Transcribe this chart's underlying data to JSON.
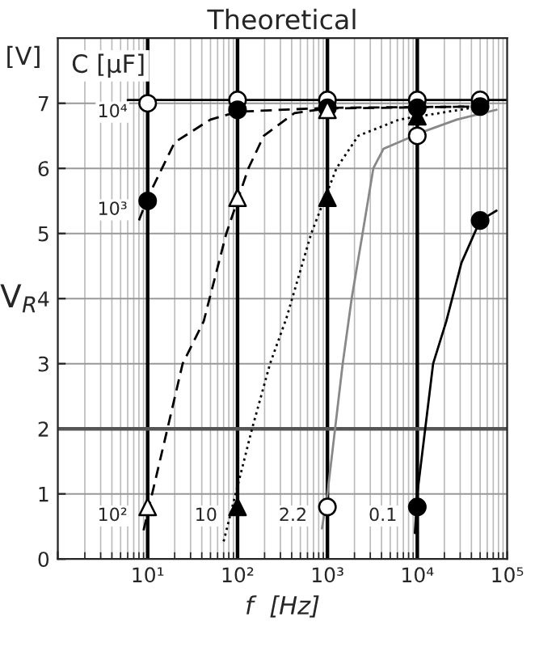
{
  "chart_data": {
    "type": "scatter",
    "title": "Theoretical",
    "xlabel": "f  [Hz]",
    "ylabel": "V$_{R}$",
    "log": "x",
    "xlim": [
      1,
      100000
    ],
    "ylim": [
      0,
      8
    ],
    "xticks": [
      {
        "value": 1,
        "label": null
      },
      {
        "value": 10,
        "label": "10¹"
      },
      {
        "value": 100,
        "label": "10²"
      },
      {
        "value": 1000,
        "label": "10³"
      },
      {
        "value": 10000,
        "label": "10⁴"
      },
      {
        "value": 100000,
        "label": "10⁵"
      }
    ],
    "yticks": [
      0,
      1,
      2,
      3,
      4,
      5,
      6,
      7
    ],
    "grid": true,
    "legend": false,
    "series": [
      {
        "type": "line",
        "color": "#000000",
        "line_style": "solid",
        "x": [
          6,
          100000
        ],
        "values": [
          7.05,
          7.05
        ]
      },
      {
        "type": "line",
        "color": "#000000",
        "line_style": "dashed",
        "x": [
          8,
          10,
          20,
          50,
          100,
          1000,
          50000
        ],
        "values": [
          5.2,
          5.55,
          6.4,
          6.75,
          6.87,
          6.93,
          6.95
        ]
      },
      {
        "type": "line",
        "color": "#000000",
        "line_style": "dashed",
        "x": [
          9,
          16.6,
          24.5,
          42,
          75,
          132,
          196,
          430,
          1000,
          50000
        ],
        "values": [
          0.44,
          2,
          3,
          3.65,
          5,
          6,
          6.5,
          6.85,
          6.92,
          6.95
        ]
      },
      {
        "type": "line",
        "color": "#000000",
        "line_style": "dotted",
        "x": [
          70,
          145,
          230,
          350,
          660,
          1260,
          2200,
          6300,
          50000
        ],
        "values": [
          0.27,
          2,
          3,
          3.7,
          5,
          6,
          6.5,
          6.75,
          6.95
        ]
      },
      {
        "type": "line",
        "color": "#888888",
        "line_style": "solid",
        "x": [
          870,
          1000,
          1480,
          1860,
          2460,
          3240,
          4200,
          11000,
          27500,
          76000
        ],
        "values": [
          0.47,
          1,
          3,
          4,
          5,
          6,
          6.3,
          6.55,
          6.75,
          6.9
        ]
      },
      {
        "type": "line",
        "color": "#000000",
        "line_style": "solid",
        "x": [
          9400,
          10000,
          15000,
          21000,
          31000,
          50000,
          76000
        ],
        "values": [
          0.4,
          1,
          3,
          3.65,
          4.55,
          5.2,
          5.35
        ]
      },
      {
        "name": "10⁴",
        "marker": "circle",
        "color": "#ffffff",
        "x": [
          10,
          100,
          1000,
          10000,
          50000
        ],
        "values": [
          7,
          7.05,
          7.05,
          7.05,
          7.05
        ]
      },
      {
        "name": "10³",
        "marker": "circle",
        "color": "#000000",
        "x": [
          10,
          100,
          1000,
          10000,
          50000
        ],
        "values": [
          5.5,
          6.9,
          6.93,
          6.93,
          6.95
        ]
      },
      {
        "name": "10²",
        "marker": "triangle",
        "color": "#ffffff",
        "x": [
          10,
          100,
          1000
        ],
        "values": [
          0.8,
          5.55,
          6.9
        ]
      },
      {
        "name": "10",
        "marker": "triangle",
        "color": "#000000",
        "x": [
          100,
          1000,
          10000
        ],
        "values": [
          0.8,
          5.55,
          6.8
        ]
      },
      {
        "name": "2.2",
        "marker": "circle",
        "color": "#ffffff",
        "x": [
          1000,
          10000
        ],
        "values": [
          0.8,
          6.5
        ]
      },
      {
        "name": "0.1",
        "marker": "circle",
        "color": "#000000",
        "x": [
          10000,
          50000
        ],
        "values": [
          0.8,
          5.2
        ]
      }
    ],
    "ref_lines": [
      {
        "axis": "x",
        "value": 10,
        "color": "#000000"
      },
      {
        "axis": "x",
        "value": 100,
        "color": "#000000"
      },
      {
        "axis": "x",
        "value": 1000,
        "color": "#000000"
      },
      {
        "axis": "x",
        "value": 10000,
        "color": "#000000"
      },
      {
        "axis": "y",
        "value": 2,
        "color": "#555555"
      }
    ],
    "annotations": [
      "[V]",
      "C [µF]"
    ]
  }
}
